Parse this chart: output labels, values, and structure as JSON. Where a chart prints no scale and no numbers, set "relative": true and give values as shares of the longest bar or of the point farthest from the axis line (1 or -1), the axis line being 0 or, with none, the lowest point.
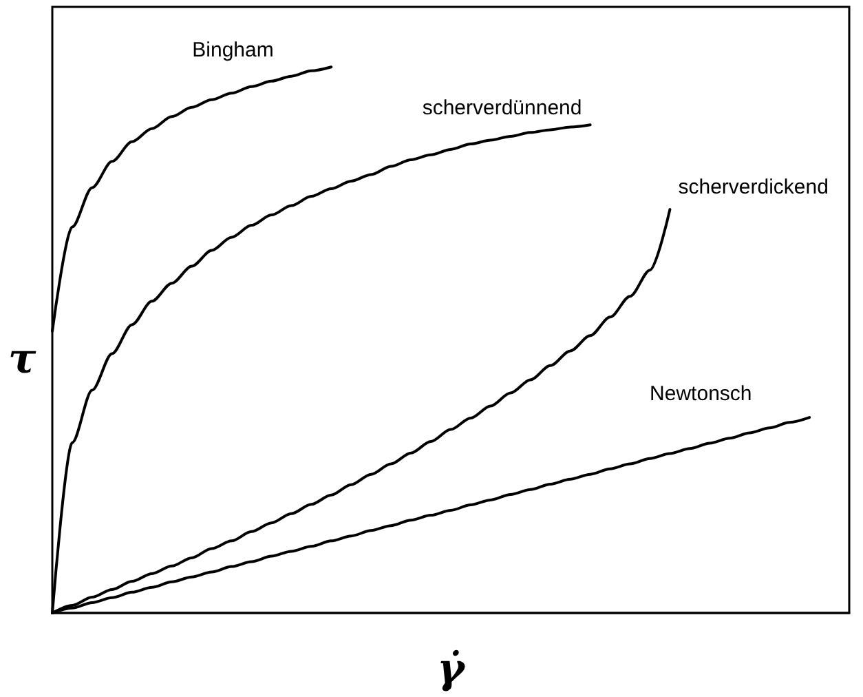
{
  "chart_data": {
    "type": "line",
    "relative": true,
    "xlabel": "γ̇",
    "ylabel": "τ",
    "grid": false,
    "legend": false,
    "marker": "none",
    "line_style": "solid",
    "categories": [
      null,
      null,
      null,
      null,
      null,
      null,
      null,
      null,
      null,
      null,
      null,
      null,
      null,
      null,
      null,
      null,
      null,
      null,
      null,
      null,
      null,
      null,
      null,
      null,
      null,
      null,
      null,
      null,
      null,
      null,
      null,
      null,
      null,
      null,
      null,
      null,
      null,
      null,
      null,
      null,
      null
    ],
    "series": [
      {
        "name": "Bingham",
        "color": "#000000",
        "values": [
          0.516,
          0.707,
          0.779,
          0.827,
          0.863,
          0.887,
          0.909,
          0.926,
          0.94,
          0.952,
          0.964,
          0.974,
          0.983,
          0.993,
          1,
          null,
          null,
          null,
          null,
          null,
          null,
          null,
          null,
          null,
          null,
          null,
          null,
          null,
          null,
          null,
          null,
          null,
          null,
          null,
          null,
          null,
          null,
          null,
          null,
          null,
          null
        ]
      },
      {
        "name": "scherverdünnend",
        "color": "#000000",
        "values": [
          0,
          0.312,
          0.408,
          0.475,
          0.528,
          0.571,
          0.604,
          0.635,
          0.664,
          0.688,
          0.71,
          0.729,
          0.746,
          0.763,
          0.777,
          0.791,
          0.803,
          0.818,
          0.83,
          0.839,
          0.849,
          0.859,
          0.866,
          0.873,
          0.88,
          0.885,
          0.89,
          0.894,
          null,
          null,
          null,
          null,
          null,
          null,
          null,
          null,
          null,
          null,
          null,
          null,
          null
        ]
      },
      {
        "name": "scherverdickend",
        "color": "#000000",
        "values": [
          0,
          0.014,
          0.029,
          0.043,
          0.058,
          0.072,
          0.086,
          0.101,
          0.118,
          0.132,
          0.149,
          0.165,
          0.182,
          0.199,
          0.216,
          0.235,
          0.254,
          0.273,
          0.293,
          0.314,
          0.336,
          0.357,
          0.379,
          0.403,
          0.427,
          0.453,
          0.48,
          0.508,
          0.542,
          0.58,
          0.628,
          0.739,
          null,
          null,
          null,
          null,
          null,
          null,
          null,
          null,
          null
        ]
      },
      {
        "name": "Newtonsch",
        "color": "#000000",
        "values": [
          0,
          0.009,
          0.019,
          0.028,
          0.038,
          0.047,
          0.057,
          0.066,
          0.075,
          0.085,
          0.094,
          0.104,
          0.113,
          0.122,
          0.132,
          0.141,
          0.151,
          0.16,
          0.17,
          0.179,
          0.188,
          0.198,
          0.207,
          0.217,
          0.226,
          0.236,
          0.245,
          0.254,
          0.264,
          0.273,
          0.283,
          0.292,
          0.301,
          0.311,
          0.32,
          0.33,
          0.339,
          0.349,
          0.358,
          null,
          null
        ]
      }
    ]
  }
}
